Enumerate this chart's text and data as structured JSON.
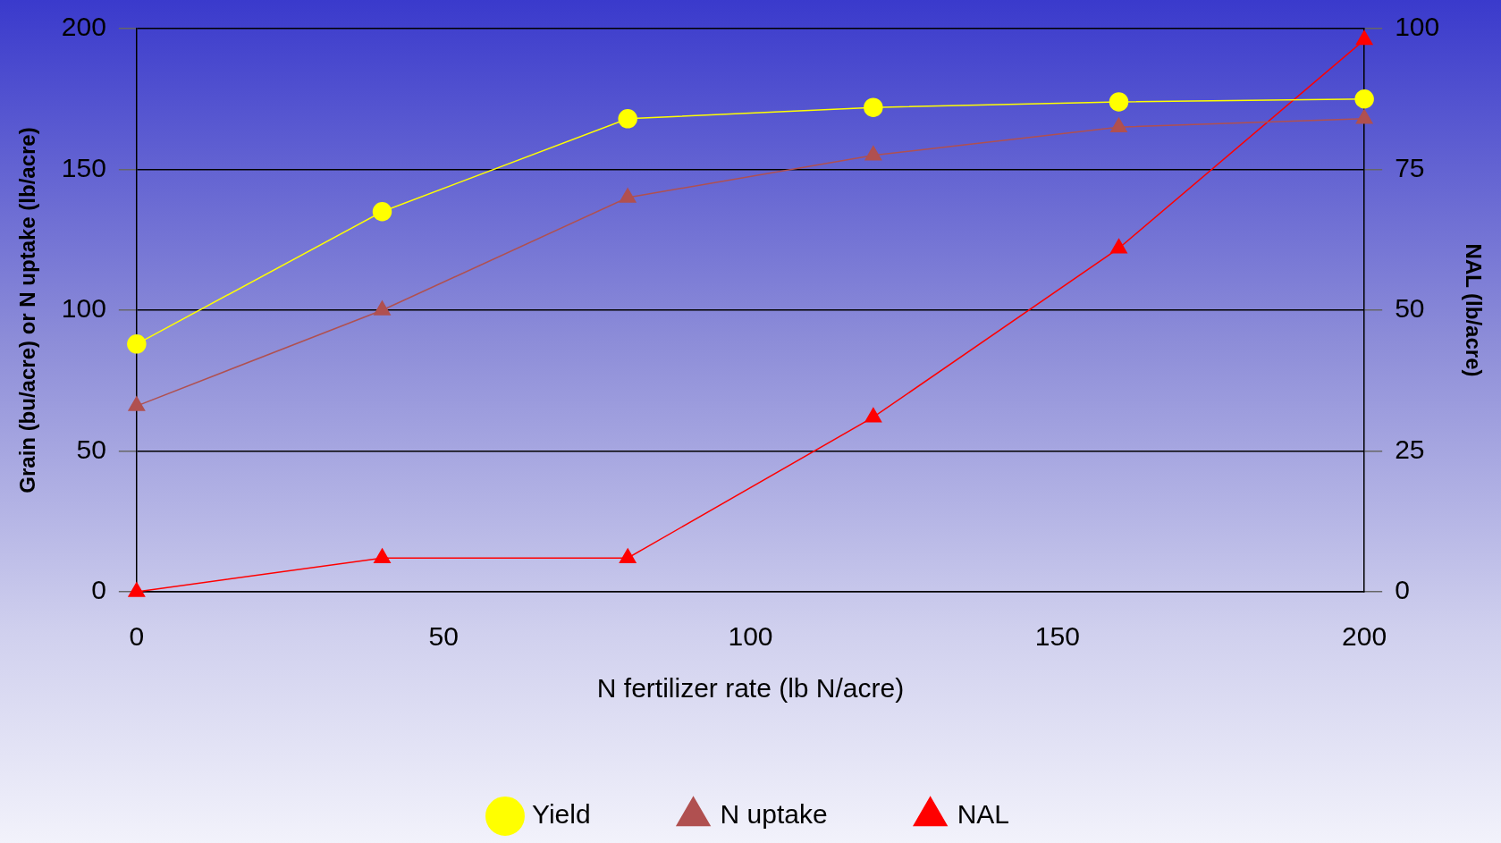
{
  "chart_data": {
    "type": "line",
    "xlabel": "N fertilizer rate (lb N/acre)",
    "ylabel": "Grain (bu/acre) or N uptake (lb/acre)",
    "y2label": "NAL (lb/acre)",
    "x": [
      0,
      40,
      80,
      120,
      160,
      200
    ],
    "xlim": [
      0,
      200
    ],
    "xticks": [
      0,
      50,
      100,
      150,
      200
    ],
    "ylim": [
      0,
      200
    ],
    "yticks": [
      0,
      50,
      100,
      150,
      200
    ],
    "y2lim": [
      0,
      100
    ],
    "y2ticks": [
      0,
      25,
      50,
      75,
      100
    ],
    "grid": "y",
    "legend": "bottom",
    "line_style": "solid",
    "series": [
      {
        "name": "Yield",
        "color": "#ffff00",
        "marker": "circle",
        "values": [
          88,
          135,
          168,
          172,
          174,
          175
        ]
      },
      {
        "name": "N uptake",
        "color": "#b05050",
        "marker": "triangle",
        "values": [
          66,
          100,
          140,
          155,
          165,
          168
        ]
      },
      {
        "name": "NAL",
        "color": "#ff0000",
        "marker": "triangle",
        "axis": "y2",
        "values": [
          0,
          6,
          6,
          31,
          61,
          98
        ]
      }
    ]
  }
}
